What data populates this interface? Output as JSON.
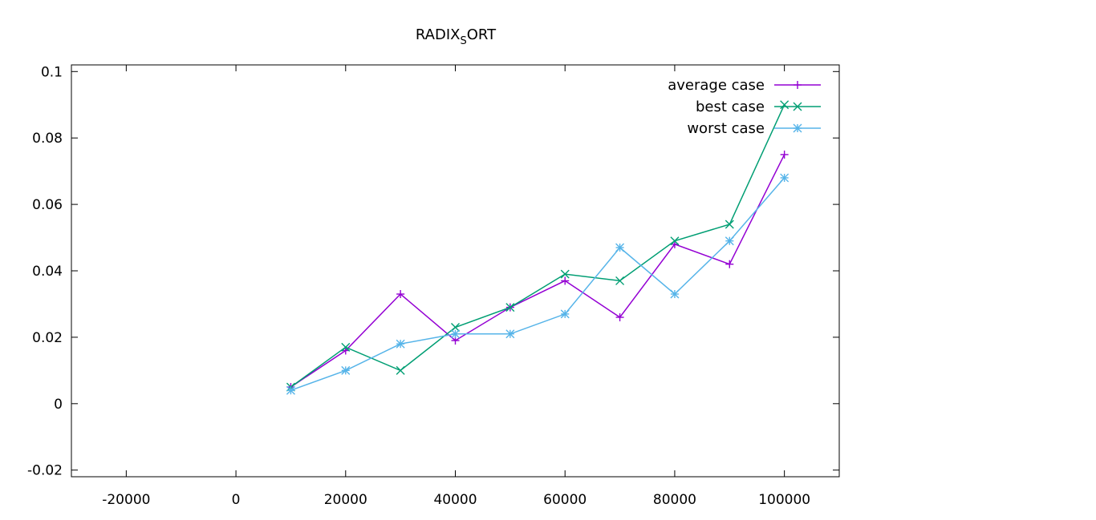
{
  "chart_data": {
    "type": "line",
    "title": "RADIX",
    "title_sub": "S",
    "title_rest": "ORT",
    "xlim": [
      -30000,
      110000
    ],
    "ylim": [
      -0.022,
      0.102
    ],
    "xticks": [
      -20000,
      0,
      20000,
      40000,
      60000,
      80000,
      100000
    ],
    "xtick_labels": [
      "-20000",
      "0",
      "20000",
      "40000",
      "60000",
      "80000",
      "100000"
    ],
    "yticks": [
      -0.02,
      0,
      0.02,
      0.04,
      0.06,
      0.08,
      0.1
    ],
    "ytick_labels": [
      "-0.02",
      "0",
      "0.02",
      "0.04",
      "0.06",
      "0.08",
      "0.1"
    ],
    "grid": false,
    "legend_position": "top-right",
    "x": [
      10000,
      20000,
      30000,
      40000,
      50000,
      60000,
      70000,
      80000,
      90000,
      100000
    ],
    "series": [
      {
        "name": "average case",
        "color": "#9400d3",
        "marker": "plus",
        "values": [
          0.005,
          0.016,
          0.033,
          0.019,
          0.029,
          0.037,
          0.026,
          0.048,
          0.042,
          0.075
        ]
      },
      {
        "name": "best case",
        "color": "#009e73",
        "marker": "cross",
        "values": [
          0.005,
          0.017,
          0.01,
          0.023,
          0.029,
          0.039,
          0.037,
          0.049,
          0.054,
          0.09
        ]
      },
      {
        "name": "worst case",
        "color": "#56b4e9",
        "marker": "star",
        "values": [
          0.004,
          0.01,
          0.018,
          0.021,
          0.021,
          0.027,
          0.047,
          0.033,
          0.049,
          0.068
        ]
      }
    ]
  }
}
